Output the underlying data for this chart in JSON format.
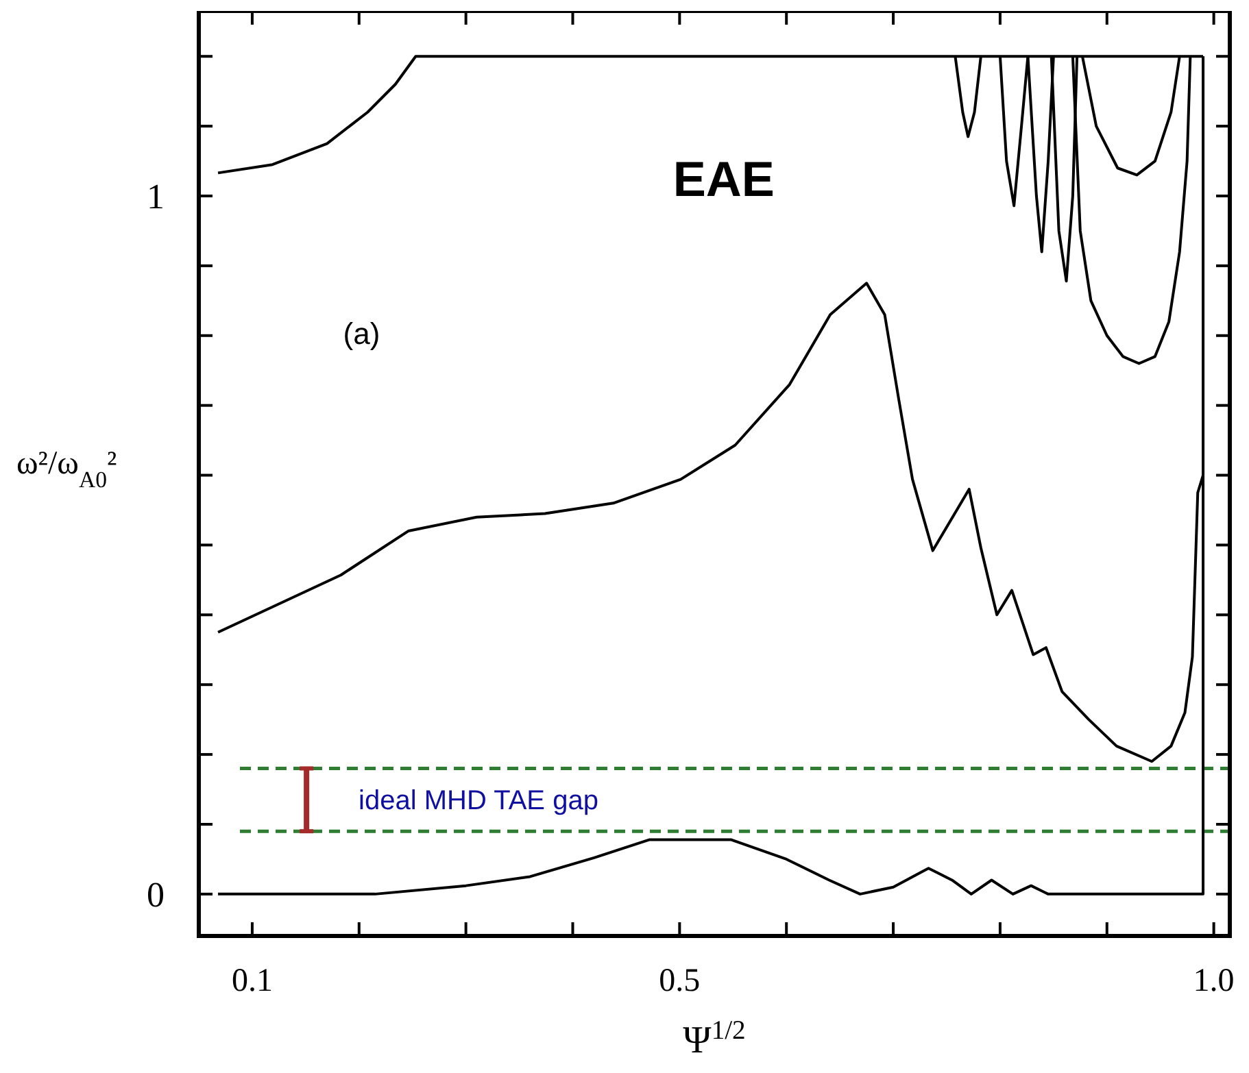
{
  "chart_data": {
    "type": "line",
    "xlabel": "Ψ$^{1/2}$",
    "ylabel": "ω²/ω$_{A0}$²",
    "xlim": [
      0.05,
      1.015
    ],
    "ylim": [
      -0.06,
      1.265
    ],
    "xticks": [
      0.1,
      {
        "value": 0.2,
        "label": null
      },
      {
        "value": 0.3,
        "label": null
      },
      {
        "value": 0.4,
        "label": null
      },
      0.5,
      {
        "value": 0.6,
        "label": null
      },
      {
        "value": 0.7,
        "label": null
      },
      {
        "value": 0.8,
        "label": null
      },
      {
        "value": 0.9,
        "label": null
      },
      {
        "value": 1.0,
        "label": "1.0"
      }
    ],
    "yticks": [
      0,
      {
        "value": 0.1,
        "label": null
      },
      {
        "value": 0.2,
        "label": null
      },
      {
        "value": 0.3,
        "label": null
      },
      {
        "value": 0.4,
        "label": null
      },
      {
        "value": 0.5,
        "label": null
      },
      {
        "value": 0.6,
        "label": null
      },
      {
        "value": 0.7,
        "label": null
      },
      {
        "value": 0.8,
        "label": null
      },
      {
        "value": 0.9,
        "label": null
      },
      1,
      {
        "value": 1.1,
        "label": null
      },
      {
        "value": 1.2,
        "label": null
      }
    ],
    "grid": false,
    "marker": "none",
    "line_style": "solid",
    "series": [
      {
        "color": "#000000",
        "x": [
          0.068,
          0.119,
          0.17,
          0.208,
          0.234,
          0.253,
          0.99
        ],
        "values": [
          1.033,
          1.045,
          1.075,
          1.12,
          1.16,
          1.2,
          1.2
        ]
      },
      {
        "color": "#000000",
        "x": [
          0.068,
          0.183,
          0.246,
          0.31,
          0.374,
          0.438,
          0.501,
          0.552,
          0.603,
          0.641,
          0.675,
          0.692,
          0.705,
          0.718,
          0.737,
          0.771,
          0.782,
          0.797,
          0.811,
          0.831,
          0.843,
          0.858,
          0.883,
          0.909,
          0.942,
          0.96,
          0.973,
          0.98,
          0.985,
          0.99,
          0.99
        ],
        "values": [
          0.375,
          0.457,
          0.52,
          0.54,
          0.545,
          0.56,
          0.594,
          0.643,
          0.73,
          0.83,
          0.875,
          0.83,
          0.71,
          0.594,
          0.492,
          0.58,
          0.496,
          0.4,
          0.435,
          0.343,
          0.353,
          0.29,
          0.25,
          0.212,
          0.19,
          0.212,
          0.26,
          0.34,
          0.575,
          0.6,
          1.2
        ]
      },
      {
        "color": "#000000",
        "x": [
          0.068,
          0.215,
          0.3,
          0.36,
          0.42,
          0.472,
          0.548,
          0.6,
          0.64,
          0.669,
          0.7,
          0.733,
          0.755,
          0.773,
          0.792,
          0.812,
          0.829,
          0.845,
          0.99,
          0.99
        ],
        "values": [
          0,
          0,
          0.012,
          0.025,
          0.052,
          0.078,
          0.078,
          0.05,
          0.02,
          0,
          0.01,
          0.037,
          0.02,
          0,
          0.02,
          0,
          0.012,
          0,
          0,
          1.2
        ]
      },
      {
        "color": "#000000",
        "x": [
          0.758,
          0.765,
          0.77,
          0.776,
          0.782
        ],
        "values": [
          1.2,
          1.12,
          1.085,
          1.12,
          1.2
        ]
      },
      {
        "color": "#000000",
        "x": [
          0.8,
          0.806,
          0.813,
          0.82,
          0.826
        ],
        "values": [
          1.2,
          1.05,
          0.986,
          1.1,
          1.2
        ]
      },
      {
        "color": "#000000",
        "x": [
          0.826,
          0.834,
          0.839,
          0.845,
          0.85
        ],
        "values": [
          1.2,
          1.0,
          0.92,
          1.05,
          1.2
        ]
      },
      {
        "color": "#000000",
        "x": [
          0.848,
          0.855,
          0.862,
          0.868,
          0.872
        ],
        "values": [
          1.2,
          0.95,
          0.878,
          1.0,
          1.2
        ]
      },
      {
        "color": "#000000",
        "x": [
          0.868,
          0.875,
          0.885,
          0.9,
          0.915,
          0.93,
          0.945,
          0.958,
          0.968,
          0.975,
          0.978
        ],
        "values": [
          1.2,
          0.95,
          0.85,
          0.8,
          0.77,
          0.76,
          0.77,
          0.82,
          0.92,
          1.05,
          1.2
        ]
      },
      {
        "color": "#000000",
        "x": [
          0.877,
          0.89,
          0.91,
          0.928,
          0.945,
          0.96,
          0.968
        ],
        "values": [
          1.2,
          1.1,
          1.04,
          1.03,
          1.05,
          1.12,
          1.2
        ]
      }
    ],
    "ref_lines": [
      {
        "axis": "y",
        "value": 0.18,
        "color": "#2e7d32",
        "line_style": "dashed"
      },
      {
        "axis": "y",
        "value": 0.09,
        "color": "#2e7d32",
        "line_style": "dashed"
      }
    ],
    "annotations": [
      "EAE",
      "(a)",
      "ideal MHD TAE gap"
    ]
  }
}
